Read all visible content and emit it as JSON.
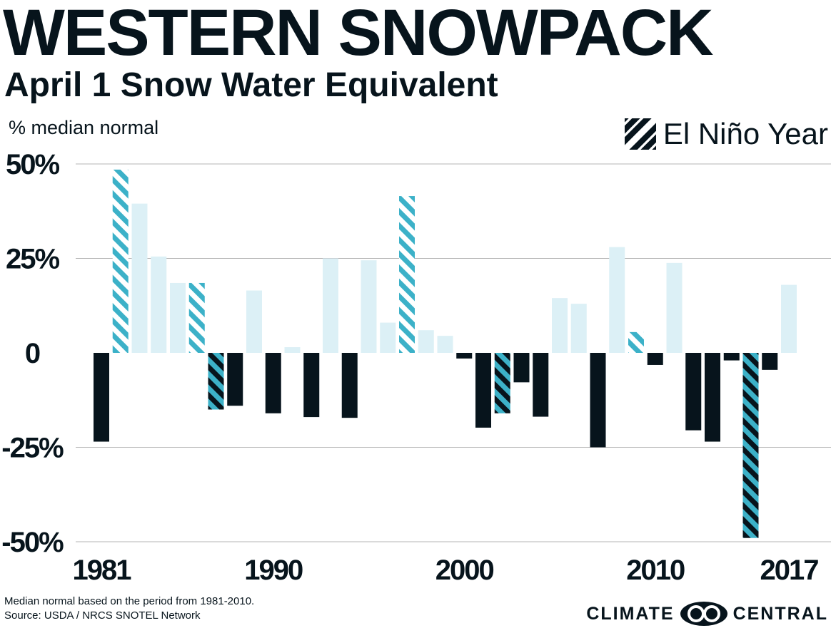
{
  "header": {
    "title": "WESTERN SNOWPACK",
    "subtitle": "April 1 Snow Water Equivalent",
    "unit_label": "% median normal"
  },
  "legend": {
    "label": "El Niño Year",
    "swatch_icon": "diagonal-stripes-icon"
  },
  "footer": {
    "note_line1": "Median normal based on the period from 1981-2010.",
    "note_line2": "Source: USDA / NRCS SNOTEL Network"
  },
  "brand": {
    "word1": "CLIMATE",
    "word2": "CENTRAL",
    "logo_icon": "interlocking-circles-logo"
  },
  "colors": {
    "positive": "#dcf0f6",
    "negative": "#07141c",
    "el_nino_stripe": "#3cb1c8",
    "el_nino_positive_bg": "#ffffff",
    "el_nino_negative_bg": "#07141c",
    "gridline": "#b5b5b5",
    "text": "#07141c"
  },
  "chart_data": {
    "type": "bar",
    "title": "WESTERN SNOWPACK",
    "subtitle": "April 1 Snow Water Equivalent",
    "ylabel": "% median normal",
    "ylim": [
      -50,
      50
    ],
    "yticks": [
      50,
      25,
      0,
      -25,
      -50
    ],
    "ytick_labels": [
      "50%",
      "25%",
      "0",
      "-25%",
      "-50%"
    ],
    "xtick_labels": [
      {
        "year": 1981,
        "label": "1981"
      },
      {
        "year": 1990,
        "label": "1990"
      },
      {
        "year": 2000,
        "label": "2000"
      },
      {
        "year": 2010,
        "label": "2010"
      },
      {
        "year": 2017,
        "label": "2017"
      }
    ],
    "grid": true,
    "years": [
      1981,
      1982,
      1983,
      1984,
      1985,
      1986,
      1987,
      1988,
      1989,
      1990,
      1991,
      1992,
      1993,
      1994,
      1995,
      1996,
      1997,
      1998,
      1999,
      2000,
      2001,
      2002,
      2003,
      2004,
      2005,
      2006,
      2007,
      2008,
      2009,
      2010,
      2011,
      2012,
      2013,
      2014,
      2015,
      2016,
      2017
    ],
    "values": [
      -23.5,
      48.5,
      39.5,
      25.5,
      18.5,
      18.5,
      -15,
      -14,
      16.5,
      -16,
      1.5,
      -17,
      25,
      -17.2,
      24.5,
      8,
      41.5,
      6,
      4.5,
      -1.5,
      -19.8,
      -16,
      -7.8,
      -16.9,
      14.5,
      13,
      -25,
      28,
      5.5,
      -3.2,
      23.8,
      -20.5,
      -23.5,
      -2,
      -49,
      -4.5,
      18
    ],
    "el_nino": [
      1982,
      1986,
      1987,
      1997,
      2002,
      2009,
      2015
    ]
  }
}
